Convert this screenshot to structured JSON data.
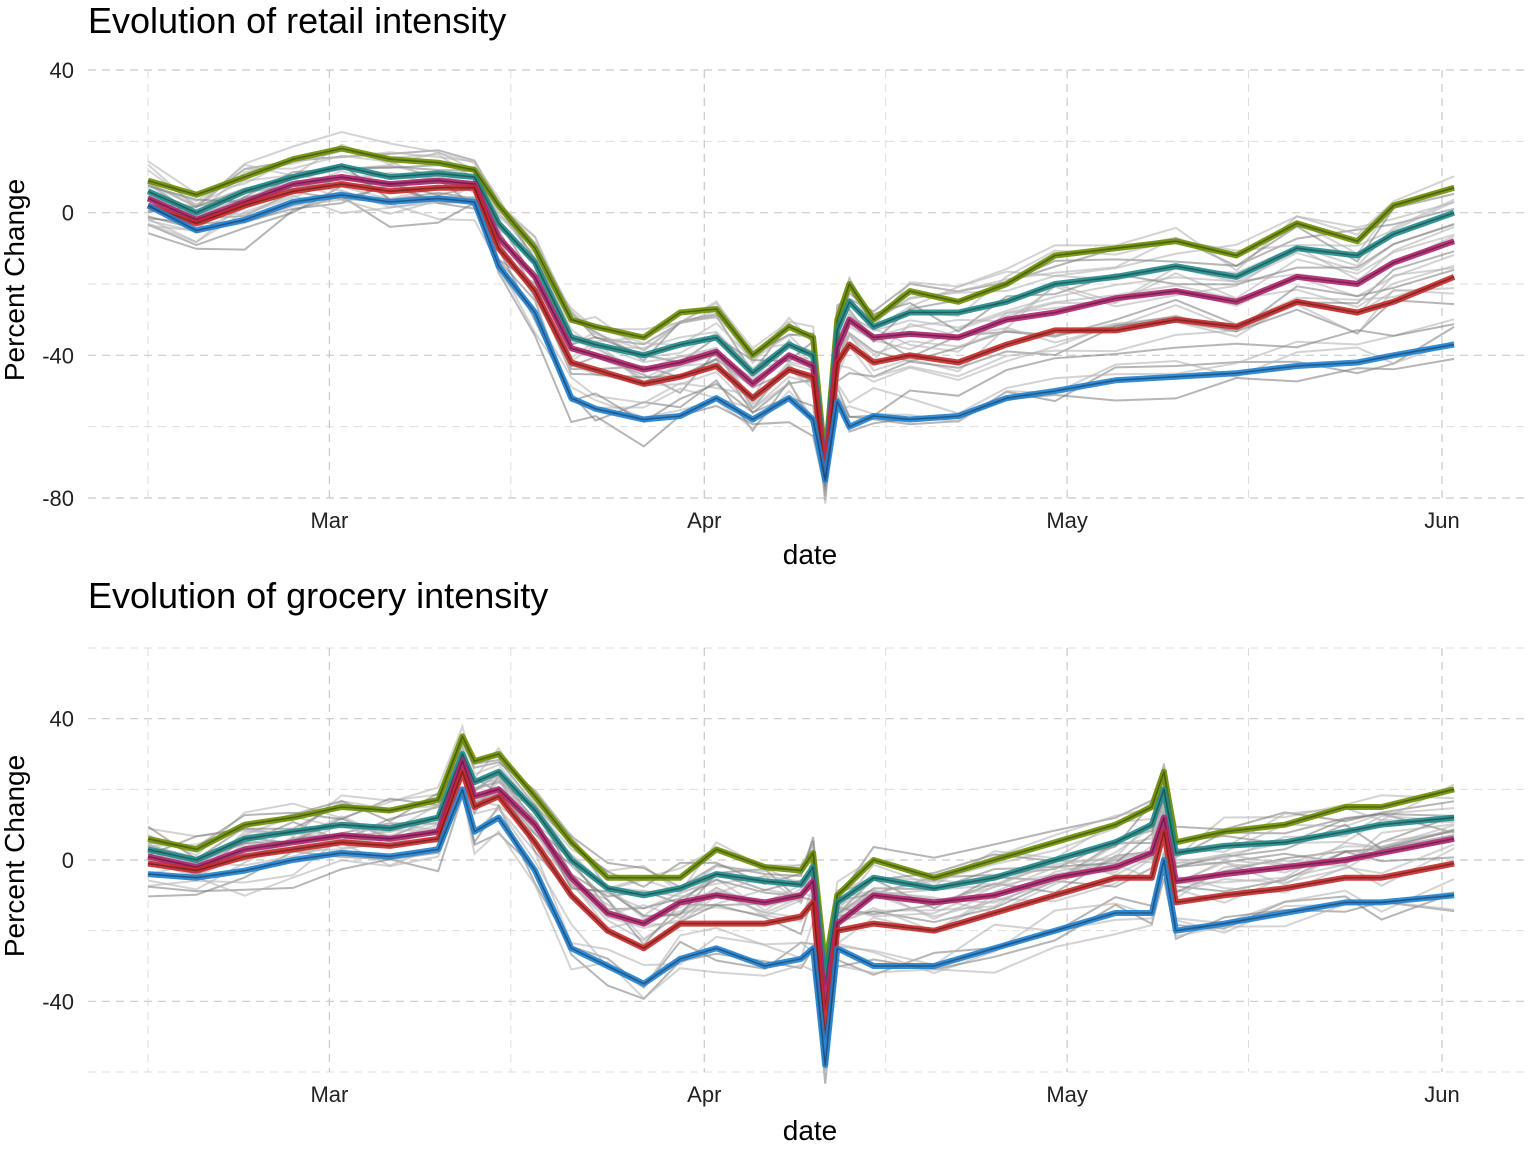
{
  "chart_data": [
    {
      "type": "line",
      "title": "Evolution of retail intensity",
      "xlabel": "date",
      "ylabel": "Percent Change",
      "x_range": [
        "2020-02-15",
        "2020-06-02"
      ],
      "ylim": [
        -80,
        40
      ],
      "y_ticks": [
        -80,
        -40,
        0,
        40
      ],
      "x_ticks": [
        {
          "date": "2020-03-01",
          "label": "Mar"
        },
        {
          "date": "2020-04-01",
          "label": "Apr"
        },
        {
          "date": "2020-05-01",
          "label": "May"
        },
        {
          "date": "2020-06-01",
          "label": "Jun"
        }
      ],
      "grid": true,
      "legend": "none",
      "x": [
        "2020-02-15",
        "2020-02-19",
        "2020-02-23",
        "2020-02-27",
        "2020-03-02",
        "2020-03-06",
        "2020-03-10",
        "2020-03-13",
        "2020-03-15",
        "2020-03-18",
        "2020-03-21",
        "2020-03-23",
        "2020-03-27",
        "2020-03-30",
        "2020-04-02",
        "2020-04-05",
        "2020-04-08",
        "2020-04-10",
        "2020-04-11",
        "2020-04-12",
        "2020-04-13",
        "2020-04-15",
        "2020-04-18",
        "2020-04-22",
        "2020-04-26",
        "2020-04-30",
        "2020-05-05",
        "2020-05-10",
        "2020-05-15",
        "2020-05-20",
        "2020-05-25",
        "2020-05-28",
        "2020-06-02"
      ],
      "series": [
        {
          "color": "#6b8e00",
          "values": [
            9,
            5,
            10,
            15,
            18,
            15,
            14,
            12,
            2,
            -10,
            -30,
            -32,
            -35,
            -28,
            -27,
            -40,
            -32,
            -35,
            -70,
            -30,
            -20,
            -30,
            -22,
            -25,
            -20,
            -12,
            -10,
            -8,
            -12,
            -3,
            -8,
            2,
            7
          ]
        },
        {
          "color": "#1f8a8a",
          "values": [
            6,
            0,
            6,
            10,
            13,
            10,
            11,
            10,
            -3,
            -14,
            -35,
            -37,
            -40,
            -37,
            -35,
            -45,
            -37,
            -40,
            -72,
            -33,
            -25,
            -32,
            -28,
            -28,
            -25,
            -20,
            -18,
            -15,
            -18,
            -10,
            -12,
            -6,
            0
          ]
        },
        {
          "color": "#b0226e",
          "values": [
            4,
            -2,
            3,
            8,
            10,
            8,
            9,
            8,
            -7,
            -18,
            -38,
            -40,
            -44,
            -42,
            -39,
            -48,
            -40,
            -43,
            -73,
            -38,
            -30,
            -35,
            -34,
            -35,
            -30,
            -28,
            -24,
            -22,
            -25,
            -18,
            -20,
            -14,
            -8
          ]
        },
        {
          "color": "#c62828",
          "values": [
            2,
            -3,
            2,
            6,
            8,
            6,
            7,
            7,
            -10,
            -22,
            -42,
            -44,
            -48,
            -46,
            -43,
            -52,
            -44,
            -46,
            -74,
            -42,
            -37,
            -42,
            -40,
            -42,
            -37,
            -33,
            -33,
            -30,
            -32,
            -25,
            -28,
            -25,
            -18
          ]
        },
        {
          "color": "#1e7fd0",
          "values": [
            2,
            -5,
            -2,
            3,
            5,
            3,
            4,
            3,
            -15,
            -28,
            -52,
            -55,
            -58,
            -57,
            -52,
            -58,
            -52,
            -58,
            -75,
            -53,
            -60,
            -57,
            -58,
            -57,
            -52,
            -50,
            -47,
            -46,
            -45,
            -43,
            -42,
            -40,
            -37
          ]
        }
      ]
    },
    {
      "type": "line",
      "title": "Evolution of grocery intensity",
      "xlabel": "date",
      "ylabel": "Percent Change",
      "x_range": [
        "2020-02-15",
        "2020-06-02"
      ],
      "ylim": [
        -60,
        60
      ],
      "y_ticks": [
        -40,
        0,
        40
      ],
      "x_ticks": [
        {
          "date": "2020-03-01",
          "label": "Mar"
        },
        {
          "date": "2020-04-01",
          "label": "Apr"
        },
        {
          "date": "2020-05-01",
          "label": "May"
        },
        {
          "date": "2020-06-01",
          "label": "Jun"
        }
      ],
      "grid": true,
      "legend": "none",
      "x": [
        "2020-02-15",
        "2020-02-19",
        "2020-02-23",
        "2020-02-27",
        "2020-03-02",
        "2020-03-06",
        "2020-03-10",
        "2020-03-12",
        "2020-03-13",
        "2020-03-15",
        "2020-03-18",
        "2020-03-21",
        "2020-03-24",
        "2020-03-27",
        "2020-03-30",
        "2020-04-02",
        "2020-04-06",
        "2020-04-09",
        "2020-04-10",
        "2020-04-11",
        "2020-04-12",
        "2020-04-15",
        "2020-04-20",
        "2020-04-25",
        "2020-04-30",
        "2020-05-05",
        "2020-05-08",
        "2020-05-09",
        "2020-05-10",
        "2020-05-14",
        "2020-05-19",
        "2020-05-24",
        "2020-05-27",
        "2020-06-02"
      ],
      "series": [
        {
          "color": "#6b8e00",
          "values": [
            6,
            3,
            10,
            12,
            15,
            14,
            17,
            35,
            28,
            30,
            18,
            5,
            -5,
            -5,
            -5,
            3,
            -2,
            -3,
            2,
            -30,
            -10,
            0,
            -5,
            0,
            5,
            10,
            15,
            25,
            5,
            8,
            10,
            15,
            15,
            20
          ]
        },
        {
          "color": "#1f8a8a",
          "values": [
            3,
            0,
            6,
            8,
            10,
            9,
            12,
            30,
            22,
            25,
            14,
            0,
            -8,
            -10,
            -8,
            -4,
            -6,
            -7,
            -2,
            -35,
            -12,
            -5,
            -8,
            -5,
            0,
            5,
            10,
            20,
            2,
            4,
            5,
            8,
            10,
            12
          ]
        },
        {
          "color": "#b0226e",
          "values": [
            1,
            -2,
            3,
            5,
            7,
            6,
            8,
            28,
            18,
            20,
            10,
            -5,
            -15,
            -18,
            -12,
            -10,
            -12,
            -10,
            -6,
            -42,
            -18,
            -10,
            -12,
            -10,
            -5,
            -2,
            2,
            12,
            -6,
            -4,
            -2,
            0,
            2,
            6
          ]
        },
        {
          "color": "#c62828",
          "values": [
            -1,
            -3,
            1,
            3,
            5,
            4,
            6,
            25,
            15,
            18,
            5,
            -10,
            -20,
            -25,
            -18,
            -18,
            -18,
            -16,
            -12,
            -50,
            -20,
            -18,
            -20,
            -15,
            -10,
            -5,
            -5,
            8,
            -12,
            -10,
            -8,
            -5,
            -5,
            -1
          ]
        },
        {
          "color": "#1e7fd0",
          "values": [
            -4,
            -5,
            -3,
            0,
            2,
            1,
            3,
            20,
            8,
            12,
            -3,
            -25,
            -30,
            -35,
            -28,
            -25,
            -30,
            -28,
            -25,
            -58,
            -25,
            -30,
            -30,
            -25,
            -20,
            -15,
            -15,
            0,
            -20,
            -18,
            -15,
            -12,
            -12,
            -10
          ]
        }
      ]
    }
  ]
}
